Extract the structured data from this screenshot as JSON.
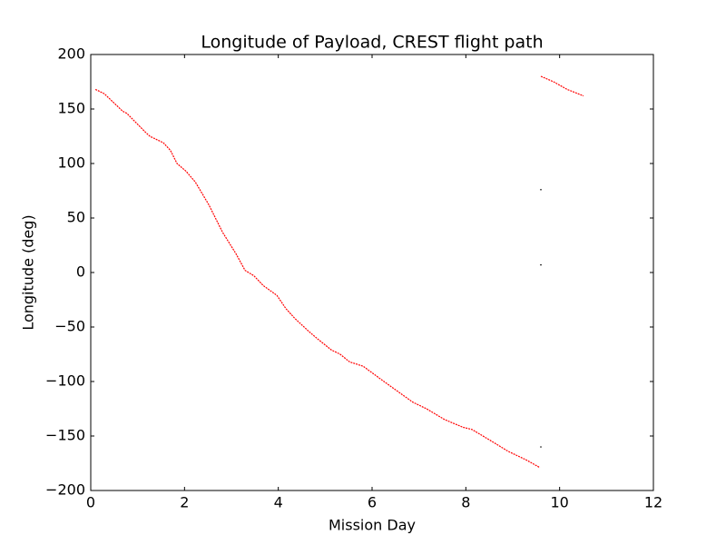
{
  "chart_data": {
    "type": "line",
    "title": "Longitude of Payload, CREST flight path",
    "x_label": "Mission Day",
    "y_label": "Longitude (deg)",
    "xlim": [
      0,
      12
    ],
    "ylim": [
      -200,
      200
    ],
    "xticks": [
      0,
      2,
      4,
      6,
      8,
      10,
      12
    ],
    "yticks": [
      {
        "value": -200,
        "label": "−200"
      },
      {
        "value": -150,
        "label": "−150"
      },
      {
        "value": -100,
        "label": "−100"
      },
      {
        "value": -50,
        "label": "−50"
      },
      0,
      50,
      100,
      150,
      200
    ],
    "grid": false,
    "series": [
      {
        "color": "#ff0000",
        "x": [
          0.1,
          0.29,
          0.68,
          0.77,
          1.16,
          1.26,
          1.55,
          1.7,
          1.84,
          2.03,
          2.23,
          2.52,
          2.81,
          3.1,
          3.29,
          3.48,
          3.68,
          3.97,
          4.16,
          4.35,
          4.65,
          4.84,
          5.13,
          5.32,
          5.52,
          5.81,
          6.0,
          6.19,
          6.48,
          6.87,
          7.16,
          7.55,
          7.94,
          8.13,
          8.52,
          8.9,
          9.29,
          9.58,
          null,
          9.6,
          9.87,
          10.16,
          10.51
        ],
        "values": [
          168,
          164,
          148,
          146,
          129,
          125,
          119,
          112,
          100,
          93,
          83,
          62,
          37,
          17,
          2,
          -3,
          -12,
          -21,
          -33,
          -42,
          -54,
          -61,
          -71,
          -75,
          -82,
          -86,
          -92,
          -98,
          -107,
          -119,
          -125,
          -135,
          -142,
          -144,
          -154,
          -164,
          -172,
          -179,
          null,
          180,
          175,
          168,
          162
        ]
      },
      {
        "color": "#000000",
        "markers_only": true,
        "x": [
          9.6,
          9.6,
          9.6
        ],
        "values": [
          76,
          7,
          -160
        ]
      }
    ]
  }
}
